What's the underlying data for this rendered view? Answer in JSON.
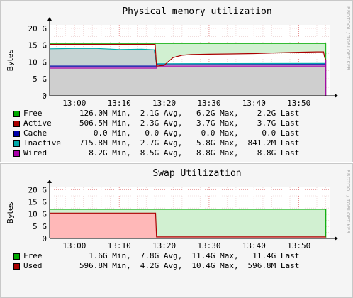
{
  "chart_data": [
    {
      "type": "area",
      "title": "Physical memory utilization",
      "ylabel": "Bytes",
      "watermark": "RRDTOOL / TOBI OETIKER",
      "x_ticks": [
        "13:00",
        "13:10",
        "13:20",
        "13:30",
        "13:40",
        "13:50"
      ],
      "x_range_minutes": [
        -5.5,
        57
      ],
      "y_ticks": [
        "0",
        "5 G",
        "10 G",
        "15 G",
        "20 G"
      ],
      "ylim": [
        0,
        21
      ],
      "y_tick_values": [
        0,
        5,
        10,
        15,
        20
      ],
      "grid": true,
      "total_top_gb": 15.5,
      "series": [
        {
          "name": "Free",
          "color": "#00aa00",
          "stats": {
            "min": "126.0M Min,",
            "avg": "2.1G Avg,",
            "max": "6.2G Max,",
            "last": "2.2G Last"
          }
        },
        {
          "name": "Active",
          "color": "#aa0000",
          "x": [
            -5.5,
            18,
            18.3,
            20,
            21,
            22,
            24,
            26,
            30,
            35,
            40,
            45,
            50,
            54,
            55.5,
            55.7,
            56
          ],
          "values": [
            15.2,
            15.2,
            8.8,
            9.0,
            10.2,
            11.3,
            12.0,
            12.2,
            12.3,
            12.4,
            12.5,
            12.7,
            12.9,
            13.0,
            13.0,
            11.5,
            10.5
          ]
        },
        {
          "name": "Cache",
          "color": "#0000aa",
          "x": [
            -5.5,
            18.3,
            18.5,
            56
          ],
          "values": [
            8.2,
            8.2,
            8.8,
            8.8
          ]
        },
        {
          "name": "Inactive",
          "color": "#00aaaa",
          "x": [
            -5.5,
            0,
            5,
            10,
            15,
            17.8,
            18.0,
            18.3,
            56
          ],
          "values": [
            13.9,
            14.0,
            14.0,
            13.7,
            13.8,
            13.6,
            11.8,
            9.5,
            9.6
          ]
        },
        {
          "name": "Wired",
          "color": "#aa00aa",
          "x": [
            -5.5,
            18.3,
            18.5,
            56
          ],
          "values": [
            8.2,
            8.2,
            8.8,
            8.8
          ]
        }
      ],
      "legend": [
        {
          "name": "Free",
          "color": "#00aa00",
          "min": "126.0M Min,",
          "avg": "2.1G Avg,",
          "max": "6.2G Max,",
          "last": "2.2G Last"
        },
        {
          "name": "Active",
          "color": "#aa0000",
          "min": "506.5M Min,",
          "avg": "2.3G Avg,",
          "max": "3.7G Max,",
          "last": "3.7G Last"
        },
        {
          "name": "Cache",
          "color": "#0000aa",
          "min": "0.0 Min,",
          "avg": "0.0 Avg,",
          "max": "0.0 Max,",
          "last": "0.0 Last"
        },
        {
          "name": "Inactive",
          "color": "#00aaaa",
          "min": "715.8M Min,",
          "avg": "2.7G Avg,",
          "max": "5.8G Max,",
          "last": "841.2M Last"
        },
        {
          "name": "Wired",
          "color": "#aa00aa",
          "min": "8.2G Min,",
          "avg": "8.5G Avg,",
          "max": "8.8G Max,",
          "last": "8.8G Last"
        }
      ]
    },
    {
      "type": "area",
      "title": "Swap Utilization",
      "ylabel": "Bytes",
      "watermark": "RRDTOOL / TOBI OETIKER",
      "x_ticks": [
        "13:00",
        "13:10",
        "13:20",
        "13:30",
        "13:40",
        "13:50"
      ],
      "x_range_minutes": [
        -5.5,
        57
      ],
      "y_ticks": [
        "0",
        "5 G",
        "10 G",
        "15 G",
        "20 G"
      ],
      "ylim": [
        0,
        21
      ],
      "y_tick_values": [
        0,
        5,
        10,
        15,
        20
      ],
      "grid": true,
      "series": [
        {
          "name": "Free",
          "color": "#00aa00",
          "x": [
            -5.5,
            56
          ],
          "values": [
            12.0,
            12.0
          ]
        },
        {
          "name": "Used",
          "color": "#aa0000",
          "x": [
            -5.5,
            18.1,
            18.3,
            56
          ],
          "values": [
            10.4,
            10.4,
            0.6,
            0.6
          ]
        }
      ],
      "legend": [
        {
          "name": "Free",
          "color": "#00aa00",
          "min": "1.6G Min,",
          "avg": "7.8G Avg,",
          "max": "11.4G Max,",
          "last": "11.4G Last"
        },
        {
          "name": "Used",
          "color": "#aa0000",
          "min": "596.8M Min,",
          "avg": "4.2G Avg,",
          "max": "10.4G Max,",
          "last": "596.8M Last"
        }
      ]
    }
  ]
}
